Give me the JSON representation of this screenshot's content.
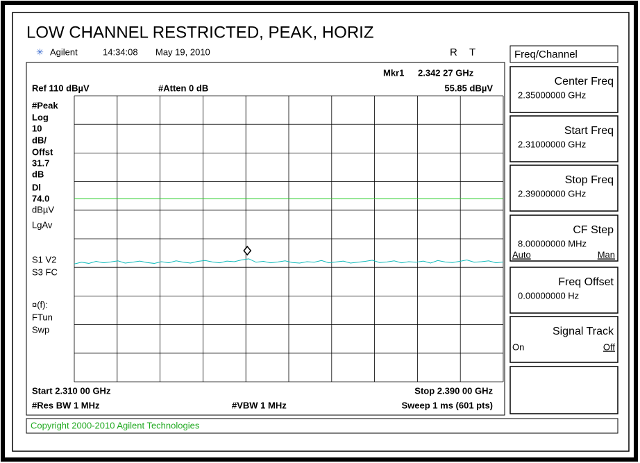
{
  "title": "LOW CHANNEL RESTRICTED, PEAK, HORIZ",
  "header": {
    "brand": "Agilent",
    "time": "14:34:08",
    "date": "May 19, 2010",
    "r": "R",
    "t": "T"
  },
  "marker": {
    "label": "Mkr1",
    "freq": "2.342 27 GHz",
    "level": "55.85 dBµV"
  },
  "ref": "Ref 110 dBµV",
  "atten": "#Atten 0 dB",
  "left_labels": [
    "#Peak",
    "Log",
    "10",
    "dB/",
    "Offst",
    "31.7",
    "dB",
    "Dl",
    "74.0",
    "dBµV",
    "LgAv",
    "S1  V2",
    "S3  FC",
    "¤(f):",
    "FTun",
    "Swp"
  ],
  "start": "Start 2.310 00 GHz",
  "stop": "Stop 2.390 00 GHz",
  "res_bw": "#Res BW 1 MHz",
  "vbw": "#VBW 1 MHz",
  "sweep": "Sweep 1 ms (601 pts)",
  "menu_title": "Freq/Channel",
  "softkeys": [
    {
      "label": "Center Freq",
      "value": "2.35000000 GHz"
    },
    {
      "label": "Start Freq",
      "value": "2.31000000 GHz"
    },
    {
      "label": "Stop Freq",
      "value": "2.39000000 GHz"
    },
    {
      "label": "CF Step",
      "value": "8.00000000 MHz",
      "options": [
        "Auto",
        "Man"
      ]
    },
    {
      "label": "Freq Offset",
      "value": "0.00000000  Hz"
    },
    {
      "label": "Signal Track",
      "options": [
        "On",
        "Off"
      ]
    }
  ],
  "copyright": "Copyright 2000-2010 Agilent Technologies",
  "spectrum": {
    "ylim": [
      10,
      110
    ],
    "xlim": [
      2.31,
      2.39
    ],
    "display_line": 74.0,
    "marker_x": 2.34227,
    "marker_y": 55.85,
    "trace": [
      51.2,
      51.8,
      51.4,
      52.1,
      51.6,
      51.9,
      52.3,
      51.5,
      51.8,
      52.2,
      51.7,
      51.4,
      52.0,
      51.6,
      52.3,
      51.8,
      51.5,
      52.1,
      52.4,
      51.9,
      51.6,
      52.2,
      52.0,
      52.6,
      53.0,
      51.8,
      52.1,
      51.6,
      51.9,
      52.3,
      51.7,
      51.5,
      52.0,
      51.8,
      52.4,
      51.6,
      51.9,
      52.2,
      51.5,
      51.8,
      52.1,
      52.5,
      51.7,
      51.9,
      52.3,
      51.6,
      52.0,
      51.8,
      52.2,
      51.5,
      52.4,
      51.9,
      51.7,
      52.1,
      52.6,
      51.8,
      52.0,
      52.3,
      51.6,
      51.9
    ]
  }
}
